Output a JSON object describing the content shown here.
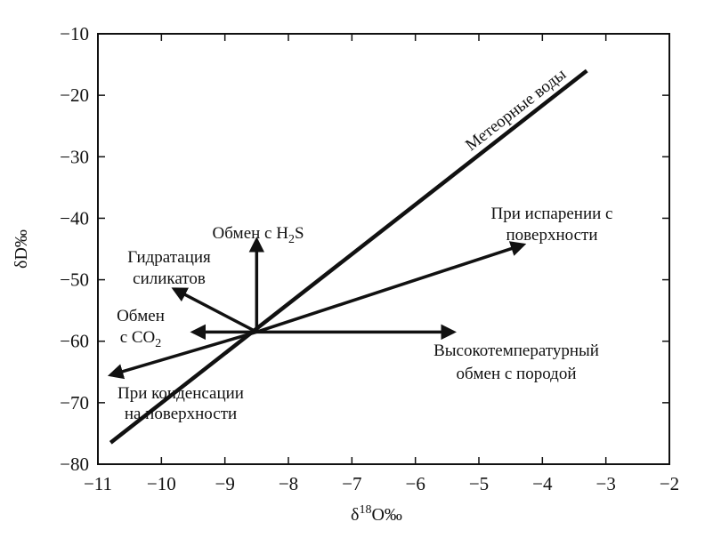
{
  "chart_data": {
    "type": "line",
    "title": "",
    "xlabel": {
      "main": "δ",
      "sup": "18",
      "rest": "O‰"
    },
    "ylabel": "δD‰",
    "xlim": [
      -11,
      -2
    ],
    "ylim": [
      -80,
      -10
    ],
    "xticks": [
      -11,
      -10,
      -9,
      -8,
      -7,
      -6,
      -5,
      -4,
      -3,
      -2
    ],
    "yticks": [
      -80,
      -70,
      -60,
      -50,
      -40,
      -30,
      -20,
      -10
    ],
    "xtick_labels": [
      "−11",
      "−10",
      "−9",
      "−8",
      "−7",
      "−6",
      "−5",
      "−4",
      "−3",
      "−2"
    ],
    "ytick_labels": [
      "−80",
      "−70",
      "−60",
      "−50",
      "−40",
      "−30",
      "−20",
      "−10"
    ],
    "grid": false,
    "origin_point": {
      "x": -8.5,
      "y": -58.5
    },
    "meteoric_line": {
      "label": "Метеорные воды",
      "points": [
        [
          -10.8,
          -76.5
        ],
        [
          -3.3,
          -16
        ]
      ]
    },
    "arrows": [
      {
        "id": "h2s",
        "from": [
          -8.5,
          -58.5
        ],
        "to": [
          -8.5,
          -43.5
        ]
      },
      {
        "id": "silicate",
        "from": [
          -8.5,
          -58.5
        ],
        "to": [
          -9.8,
          -51.5
        ]
      },
      {
        "id": "co2",
        "from": [
          -8.5,
          -58.5
        ],
        "to": [
          -9.5,
          -58.5
        ]
      },
      {
        "id": "highT",
        "from": [
          -8.5,
          -58.5
        ],
        "to": [
          -5.4,
          -58.5
        ]
      },
      {
        "id": "evap",
        "from": [
          -8.5,
          -58.5
        ],
        "to": [
          -4.3,
          -44.3
        ]
      },
      {
        "id": "cond",
        "from": [
          -8.5,
          -58.5
        ],
        "to": [
          -10.8,
          -65.5
        ]
      }
    ],
    "annotations": [
      {
        "id": "h2s",
        "lines": [
          {
            "t": "Обмен с H",
            "sub": "2",
            "after": "S"
          }
        ]
      },
      {
        "id": "silicate",
        "lines": [
          {
            "t": "Гидратация"
          },
          {
            "t": "силикатов"
          }
        ]
      },
      {
        "id": "co2",
        "lines": [
          {
            "t": "Обмен"
          },
          {
            "t": "с CO",
            "sub": "2",
            "after": ""
          }
        ]
      },
      {
        "id": "highT",
        "lines": [
          {
            "t": "Высокотемпературный"
          },
          {
            "t": "обмен с породой"
          }
        ]
      },
      {
        "id": "evap",
        "lines": [
          {
            "t": "При испарении с"
          },
          {
            "t": "поверхности"
          }
        ]
      },
      {
        "id": "cond",
        "lines": [
          {
            "t": "При конденсации"
          },
          {
            "t": "на поверхности"
          }
        ]
      }
    ]
  }
}
